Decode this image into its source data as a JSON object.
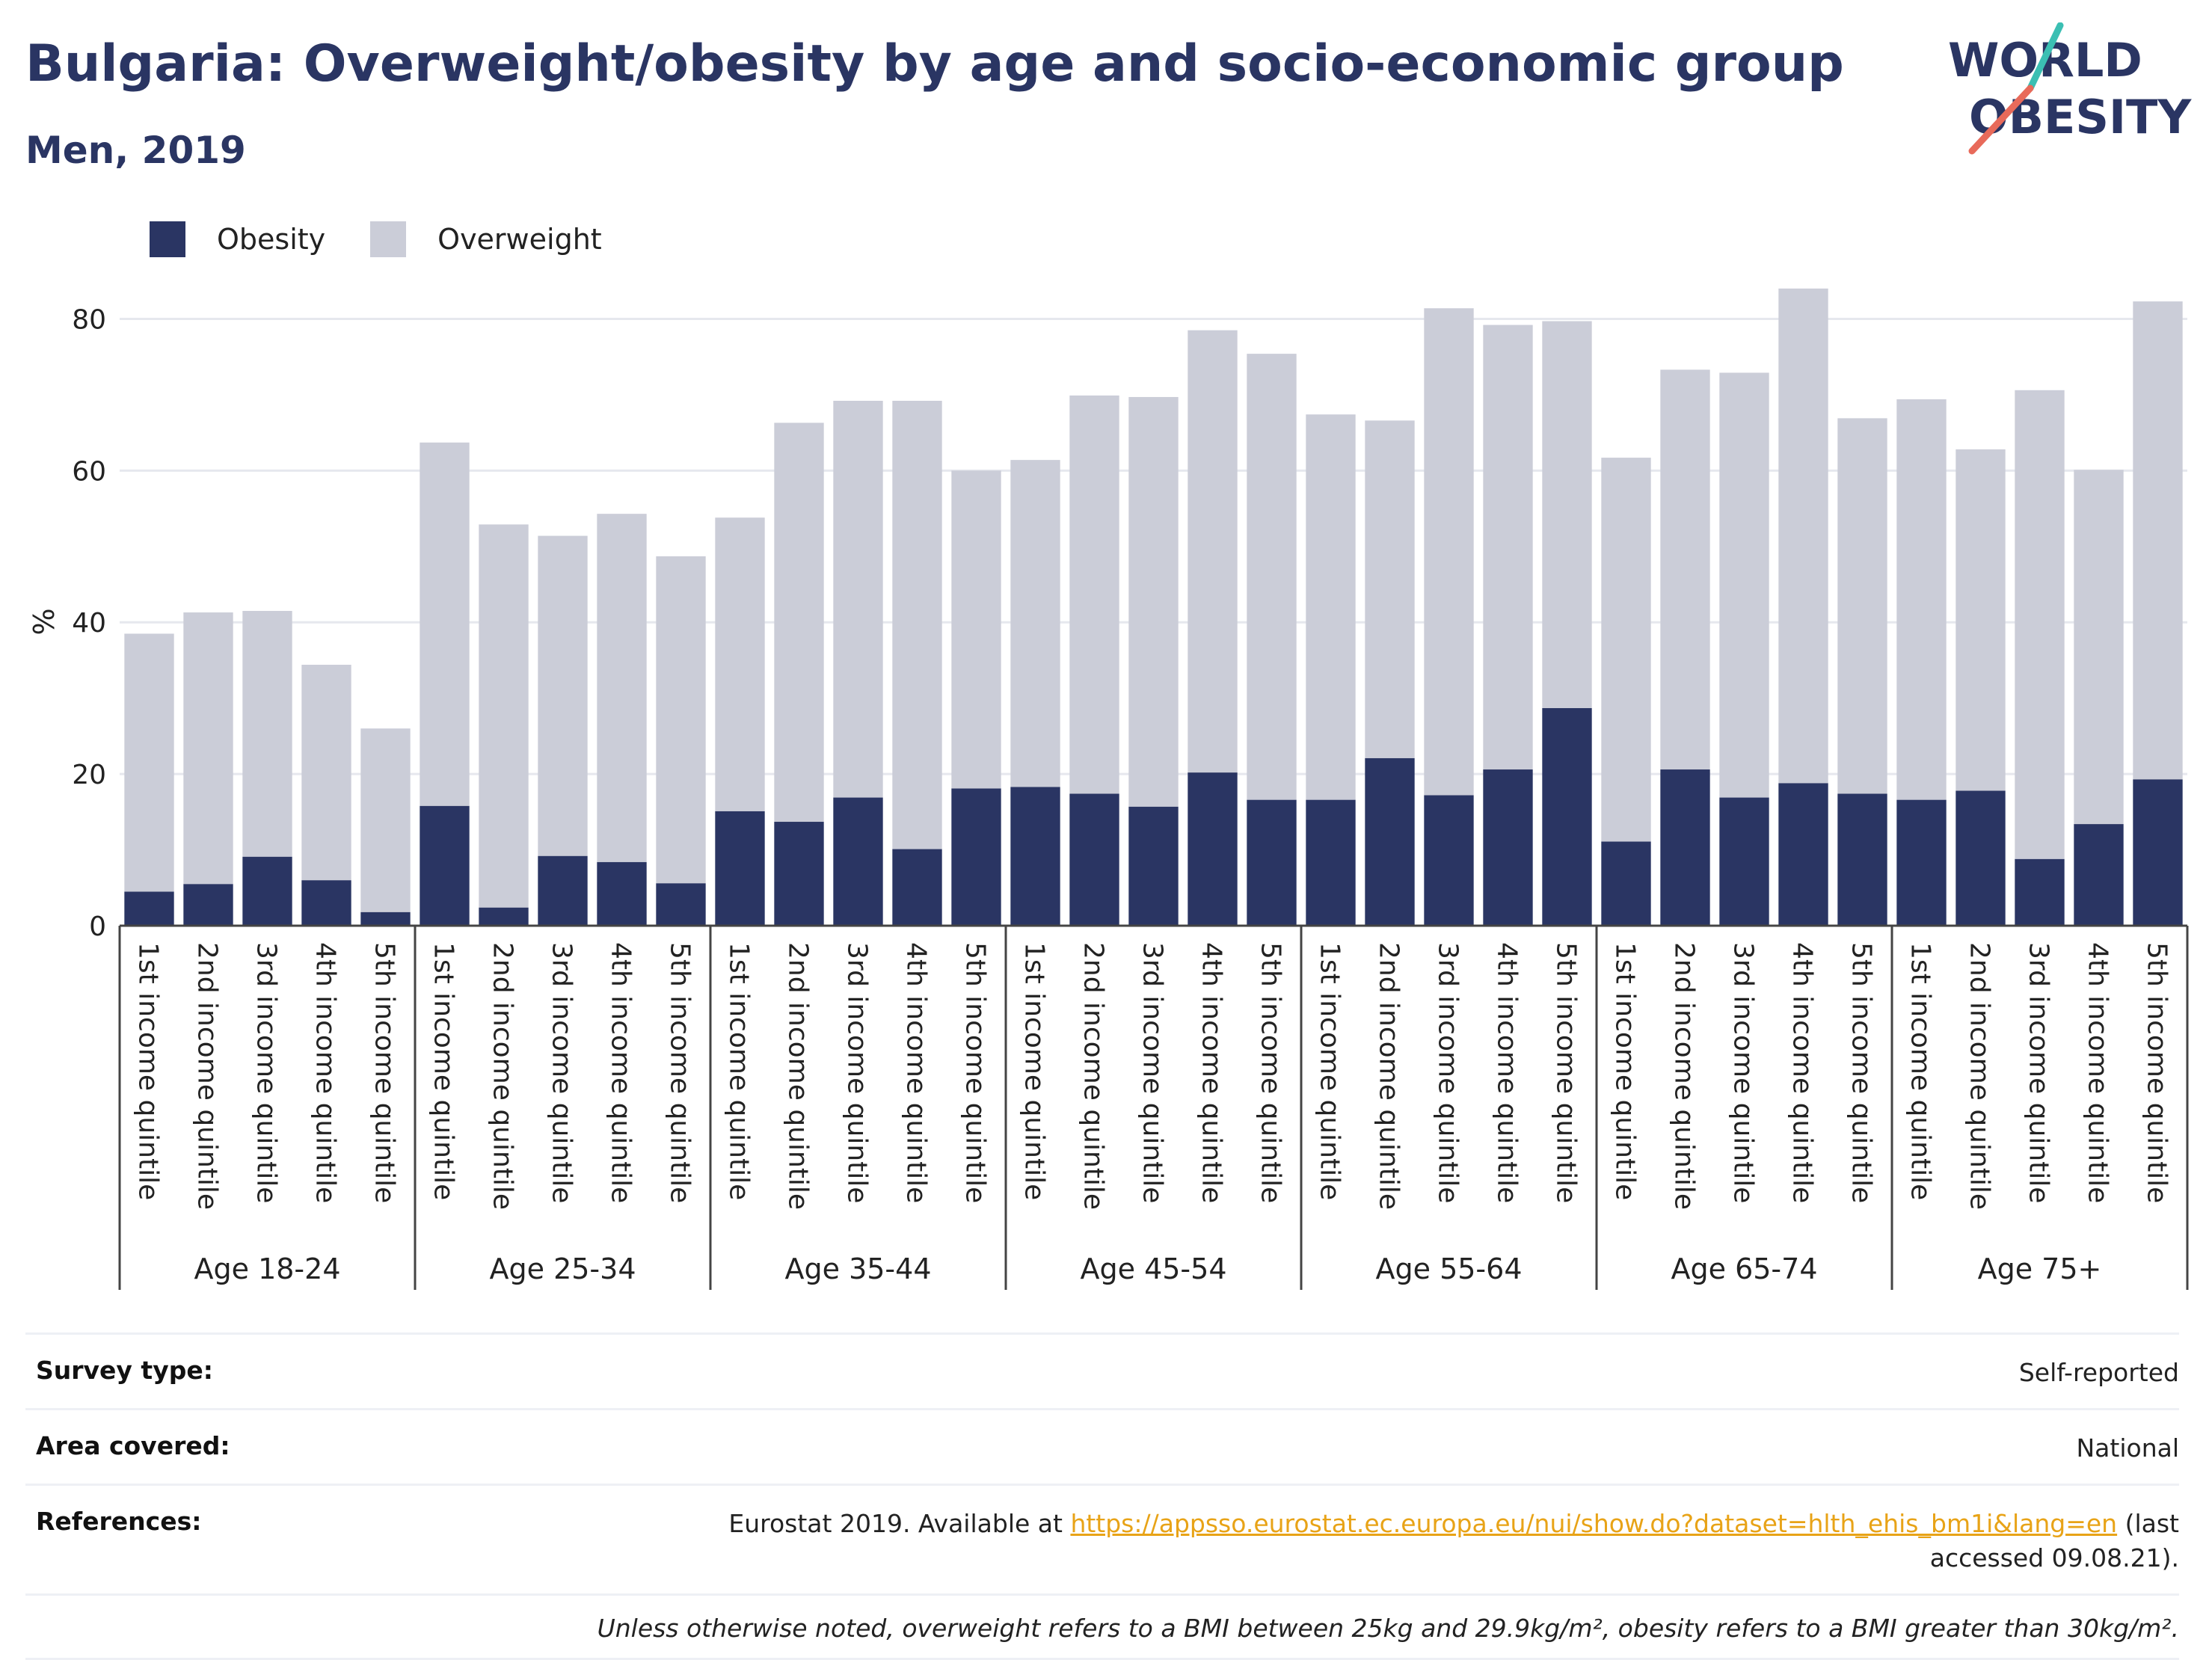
{
  "title": "Bulgaria: Overweight/obesity by age and socio-economic group",
  "subtitle": "Men, 2019",
  "logo": {
    "line1": "WORLD",
    "line2": "OBESITY"
  },
  "colors": {
    "obesity": "#2a3563",
    "overweight": "#cbcdd8",
    "title": "#2a3563",
    "link": "#e8a317",
    "logo_teal": "#3bbfb3",
    "logo_red": "#e86a5a"
  },
  "legend": [
    {
      "label": "Obesity",
      "color": "#2a3563"
    },
    {
      "label": "Overweight",
      "color": "#cbcdd8"
    }
  ],
  "chart_data": {
    "type": "bar",
    "stacked": true,
    "ylabel": "%",
    "ylim": [
      0,
      90
    ],
    "yticks": [
      0,
      20,
      40,
      60,
      80
    ],
    "grid": true,
    "legend_position": "top-left",
    "groups": [
      "Age 18-24",
      "Age 25-34",
      "Age 35-44",
      "Age 45-54",
      "Age 55-64",
      "Age 65-74",
      "Age 75+"
    ],
    "subcategories": [
      "1st income quintile",
      "2nd income quintile",
      "3rd income quintile",
      "4th income quintile",
      "5th income quintile"
    ],
    "series": [
      {
        "name": "Obesity",
        "values": [
          4.5,
          5.5,
          9.1,
          6.0,
          1.8,
          15.8,
          2.4,
          9.2,
          8.4,
          5.6,
          15.1,
          13.7,
          16.9,
          10.1,
          18.1,
          18.3,
          17.4,
          15.7,
          20.2,
          16.6,
          16.6,
          22.1,
          17.2,
          20.6,
          28.7,
          11.1,
          20.6,
          16.9,
          18.8,
          17.4,
          16.6,
          17.8,
          8.8,
          13.4,
          19.3
        ]
      },
      {
        "name": "Overweight",
        "values": [
          34.0,
          35.8,
          32.4,
          28.4,
          24.2,
          47.9,
          50.5,
          42.2,
          45.9,
          43.1,
          38.7,
          52.6,
          52.3,
          59.1,
          41.9,
          43.1,
          52.5,
          54.0,
          58.3,
          58.8,
          50.8,
          44.5,
          64.2,
          58.6,
          51.0,
          50.6,
          52.7,
          56.0,
          65.2,
          49.5,
          52.8,
          45.0,
          61.8,
          46.7,
          63.0
        ]
      }
    ]
  },
  "meta": {
    "survey_type": {
      "label": "Survey type:",
      "value": "Self-reported"
    },
    "area_covered": {
      "label": "Area covered:",
      "value": "National"
    },
    "references": {
      "label": "References:",
      "prefix": "Eurostat 2019. Available at ",
      "link": "https://appsso.eurostat.ec.europa.eu/nui/show.do?dataset=hlth_ehis_bm1i&lang=en",
      "suffix": " (last accessed 09.08.21)."
    },
    "note": "Unless otherwise noted, overweight refers to a BMI between 25kg and 29.9kg/m², obesity refers to a BMI greater than 30kg/m²."
  }
}
